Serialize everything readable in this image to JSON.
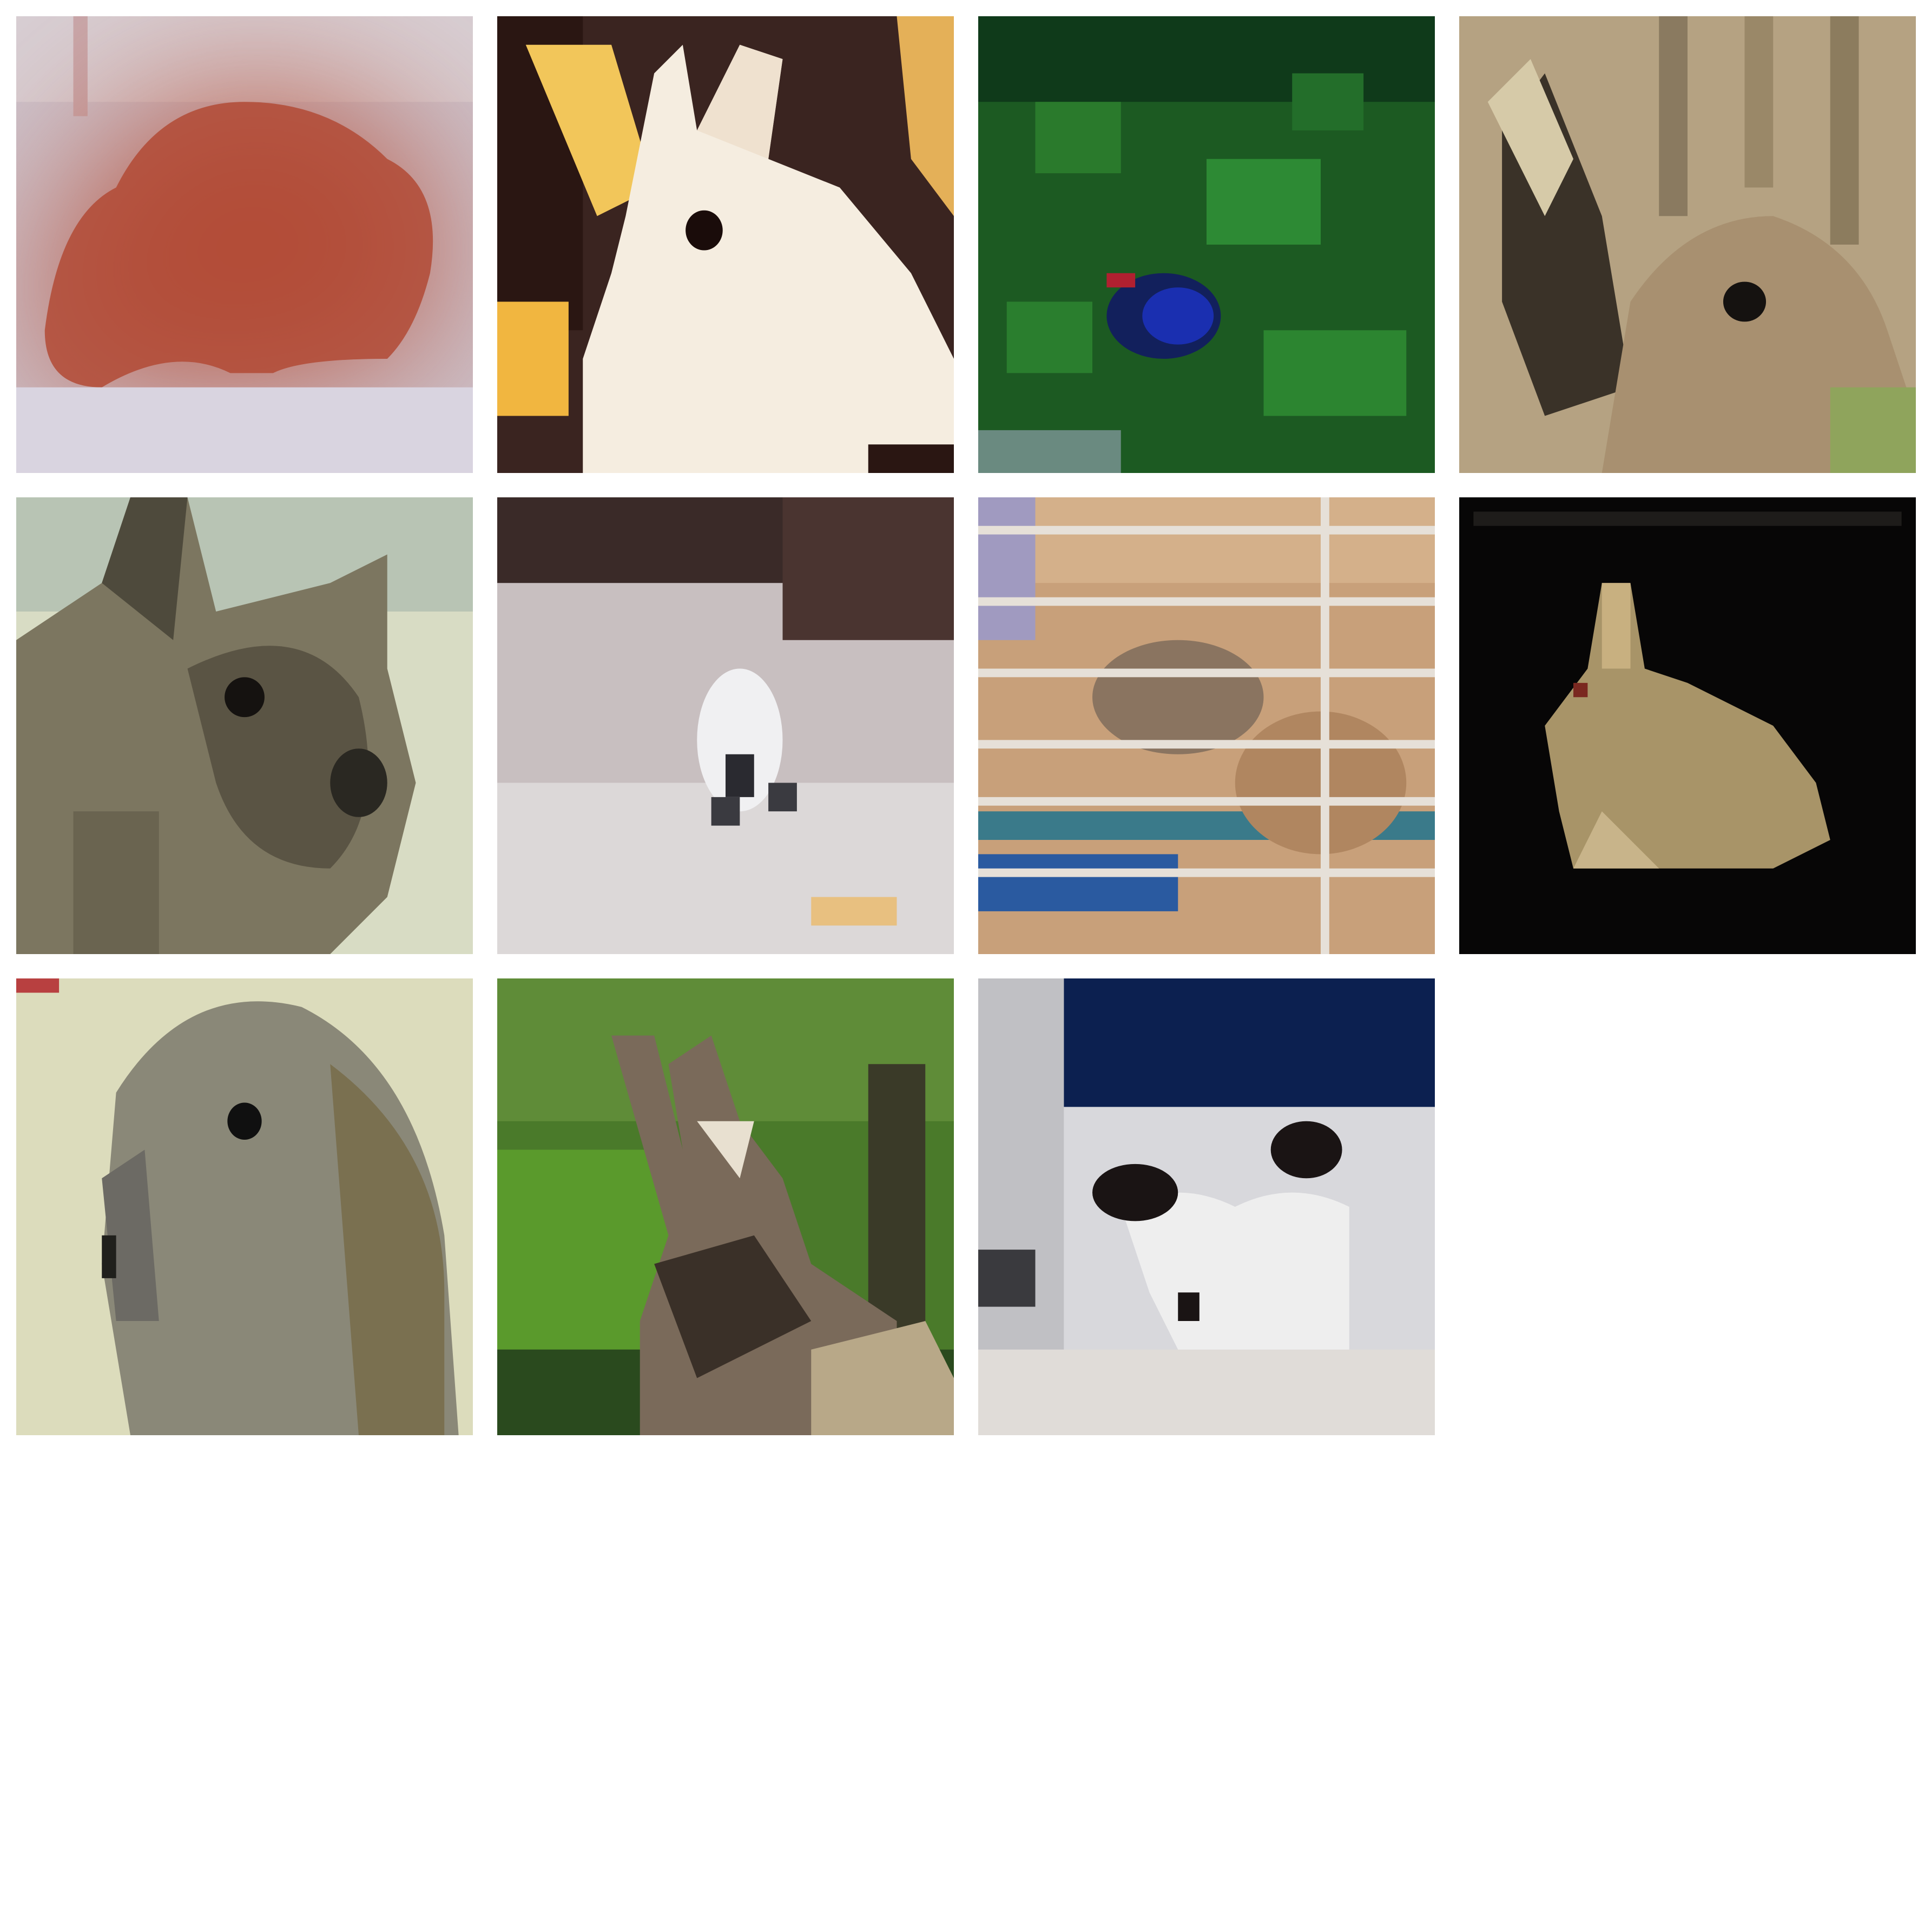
{
  "grid": {
    "rows": 3,
    "columns": 4,
    "tile_count": 11,
    "background": "#ffffff",
    "tiles": [
      {
        "subject": "red-rabbit-on-snow"
      },
      {
        "subject": "white-rabbit-yellow-background"
      },
      {
        "subject": "small-dark-animal-on-grass"
      },
      {
        "subject": "brown-rabbit-closeup"
      },
      {
        "subject": "grey-brown-rabbit-closeup"
      },
      {
        "subject": "white-rabbit-on-floor"
      },
      {
        "subject": "rabbit-in-cage"
      },
      {
        "subject": "rabbit-on-black-background"
      },
      {
        "subject": "grey-lop-rabbit"
      },
      {
        "subject": "rabbit-in-garden"
      },
      {
        "subject": "black-white-rabbit-indoors"
      }
    ]
  }
}
